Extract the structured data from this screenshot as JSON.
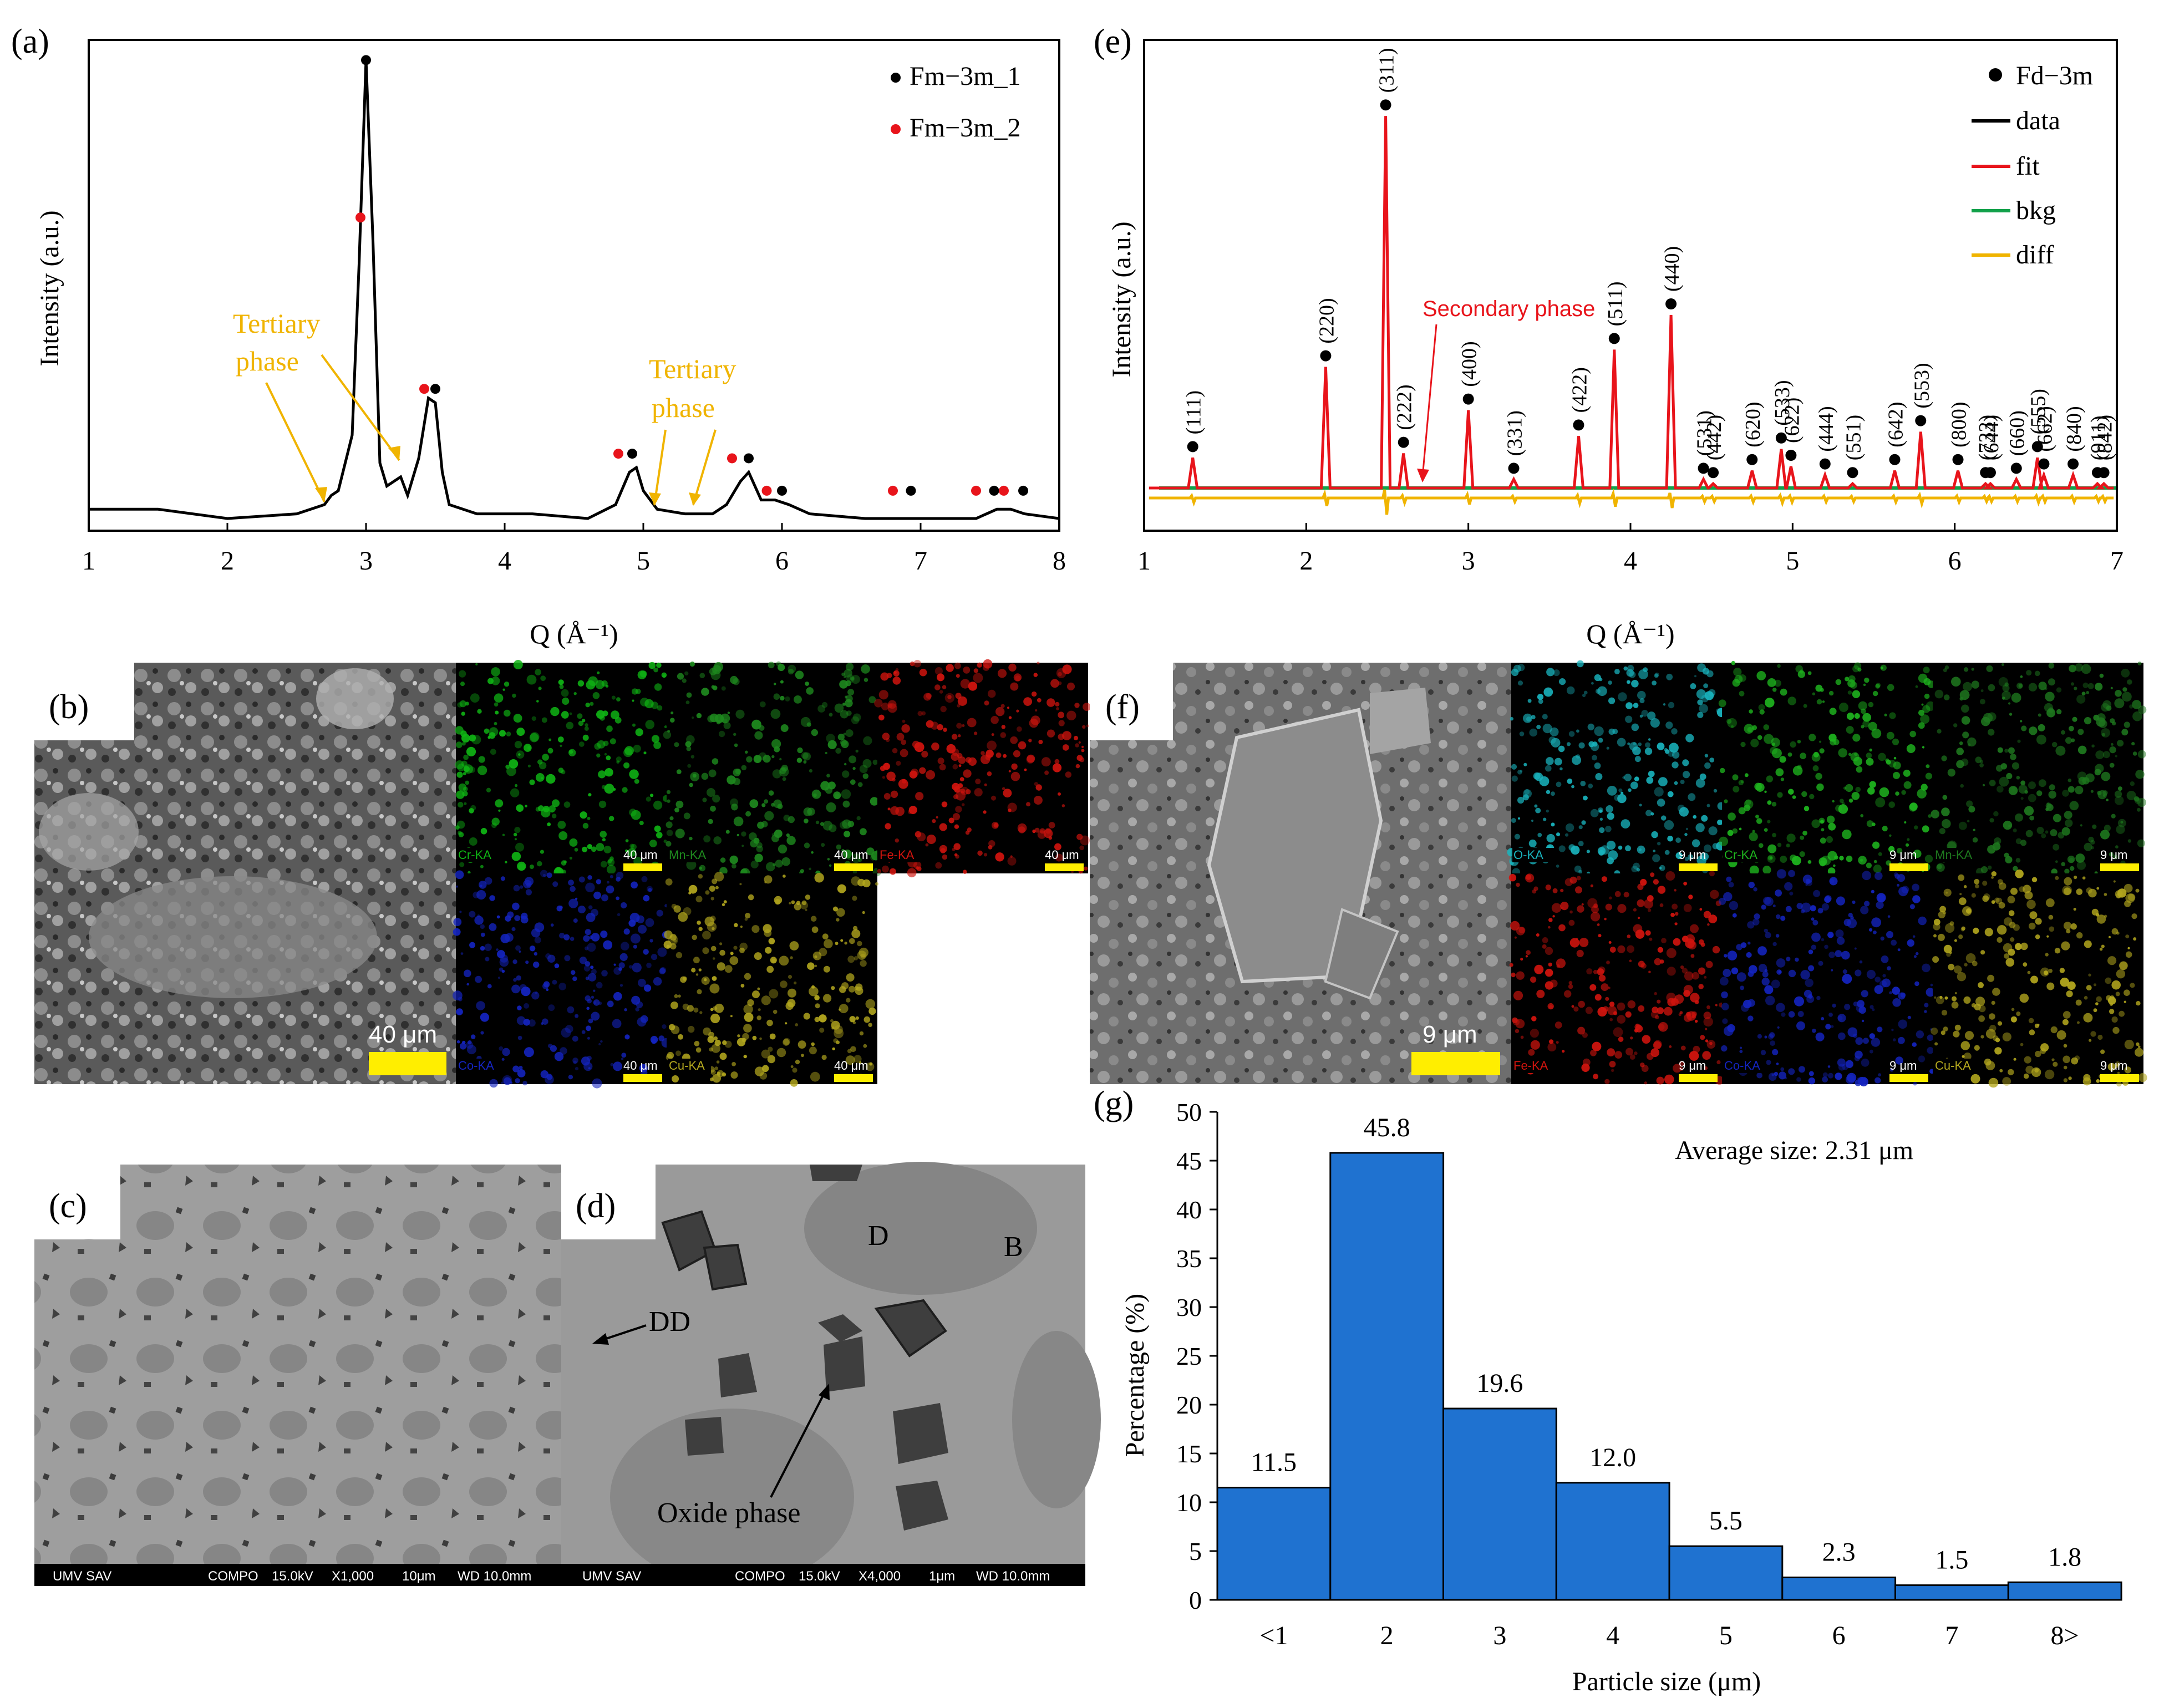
{
  "panels": {
    "a": "(a)",
    "b": "(b)",
    "c": "(c)",
    "d": "(d)",
    "e": "(e)",
    "f": "(f)",
    "g": "(g)"
  },
  "colors": {
    "black": "#000000",
    "red": "#e8141b",
    "green": "#12a14a",
    "orange": "#f0b400",
    "bar": "#1f72d0",
    "tertiary": "#f0b400"
  },
  "chart_data": [
    {
      "id": "a",
      "type": "line",
      "xlabel": "Q (Å⁻¹)",
      "ylabel": "Intensity (a.u.)",
      "xlim": [
        1,
        8
      ],
      "xticks": [
        "1",
        "2",
        "3",
        "4",
        "5",
        "6",
        "7",
        "8"
      ],
      "legend": [
        {
          "name": "Fm−3m_1",
          "color": "#000000"
        },
        {
          "name": "Fm−3m_2",
          "color": "#e8141b"
        }
      ],
      "curve": [
        [
          1.0,
          0.02
        ],
        [
          1.5,
          0.02
        ],
        [
          2.0,
          0.0
        ],
        [
          2.5,
          0.01
        ],
        [
          2.7,
          0.03
        ],
        [
          2.75,
          0.05
        ],
        [
          2.8,
          0.06
        ],
        [
          2.9,
          0.18
        ],
        [
          2.95,
          0.55
        ],
        [
          3.0,
          0.99
        ],
        [
          3.05,
          0.6
        ],
        [
          3.1,
          0.12
        ],
        [
          3.15,
          0.07
        ],
        [
          3.2,
          0.08
        ],
        [
          3.25,
          0.09
        ],
        [
          3.3,
          0.05
        ],
        [
          3.38,
          0.13
        ],
        [
          3.45,
          0.26
        ],
        [
          3.5,
          0.25
        ],
        [
          3.55,
          0.1
        ],
        [
          3.6,
          0.03
        ],
        [
          3.8,
          0.01
        ],
        [
          4.2,
          0.01
        ],
        [
          4.6,
          0.0
        ],
        [
          4.8,
          0.03
        ],
        [
          4.9,
          0.1
        ],
        [
          4.95,
          0.11
        ],
        [
          5.0,
          0.06
        ],
        [
          5.1,
          0.02
        ],
        [
          5.3,
          0.01
        ],
        [
          5.5,
          0.01
        ],
        [
          5.6,
          0.03
        ],
        [
          5.7,
          0.08
        ],
        [
          5.76,
          0.1
        ],
        [
          5.85,
          0.04
        ],
        [
          5.95,
          0.04
        ],
        [
          6.05,
          0.03
        ],
        [
          6.2,
          0.01
        ],
        [
          6.6,
          0.0
        ],
        [
          7.0,
          0.0
        ],
        [
          7.4,
          0.0
        ],
        [
          7.55,
          0.02
        ],
        [
          7.65,
          0.02
        ],
        [
          7.75,
          0.01
        ],
        [
          8.0,
          0.0
        ]
      ],
      "markers_1": [
        [
          3.0,
          0.99
        ],
        [
          3.5,
          0.28
        ],
        [
          4.92,
          0.14
        ],
        [
          5.76,
          0.13
        ],
        [
          6.0,
          0.06
        ],
        [
          6.93,
          0.06
        ],
        [
          7.53,
          0.06
        ],
        [
          7.74,
          0.06
        ]
      ],
      "markers_2": [
        [
          2.96,
          0.65
        ],
        [
          3.42,
          0.28
        ],
        [
          4.82,
          0.14
        ],
        [
          5.64,
          0.13
        ],
        [
          5.89,
          0.06
        ],
        [
          6.8,
          0.06
        ],
        [
          7.4,
          0.06
        ],
        [
          7.6,
          0.06
        ]
      ],
      "annotations": [
        {
          "text": "Tertiary phase",
          "line1": "Tertiary",
          "line2": "phase",
          "x": 2.4,
          "y": 0.42
        },
        {
          "text": "Tertiary phase",
          "line1": "Tertiary",
          "line2": "phase",
          "x": 5.4,
          "y": 0.28
        }
      ]
    },
    {
      "id": "e",
      "type": "line",
      "xlabel": "Q (Å⁻¹)",
      "ylabel": "Intensity (a.u.)",
      "xlim": [
        1,
        7
      ],
      "xticks": [
        "1",
        "2",
        "3",
        "4",
        "5",
        "6",
        "7"
      ],
      "legend": [
        {
          "name": "Fd−3m",
          "marker": true
        },
        {
          "name": "data",
          "color": "#000000"
        },
        {
          "name": "fit",
          "color": "#e8141b"
        },
        {
          "name": "bkg",
          "color": "#12a14a"
        },
        {
          "name": "diff",
          "color": "#f0b400"
        }
      ],
      "annotation": "Secondary phase",
      "peaks": [
        {
          "hkl": "(111)",
          "q": 1.3,
          "h": 0.07
        },
        {
          "hkl": "(220)",
          "q": 2.12,
          "h": 0.28
        },
        {
          "hkl": "(311)",
          "q": 2.49,
          "h": 0.86
        },
        {
          "hkl": "(222)",
          "q": 2.6,
          "h": 0.08
        },
        {
          "hkl": "(400)",
          "q": 3.0,
          "h": 0.18
        },
        {
          "hkl": "(331)",
          "q": 3.28,
          "h": 0.02
        },
        {
          "hkl": "(422)",
          "q": 3.68,
          "h": 0.12
        },
        {
          "hkl": "(511)",
          "q": 3.9,
          "h": 0.32
        },
        {
          "hkl": "(440)",
          "q": 4.25,
          "h": 0.4
        },
        {
          "hkl": "(531)",
          "q": 4.45,
          "h": 0.02
        },
        {
          "hkl": "(442)",
          "q": 4.51,
          "h": 0.01
        },
        {
          "hkl": "(620)",
          "q": 4.75,
          "h": 0.04
        },
        {
          "hkl": "(533)",
          "q": 4.93,
          "h": 0.09
        },
        {
          "hkl": "(622)",
          "q": 4.99,
          "h": 0.05
        },
        {
          "hkl": "(444)",
          "q": 5.2,
          "h": 0.03
        },
        {
          "hkl": "(551)",
          "q": 5.37,
          "h": 0.01
        },
        {
          "hkl": "(642)",
          "q": 5.63,
          "h": 0.04
        },
        {
          "hkl": "(553)",
          "q": 5.79,
          "h": 0.13
        },
        {
          "hkl": "(800)",
          "q": 6.02,
          "h": 0.04
        },
        {
          "hkl": "(733)",
          "q": 6.19,
          "h": 0.01
        },
        {
          "hkl": "(644)",
          "q": 6.22,
          "h": 0.01
        },
        {
          "hkl": "(660)",
          "q": 6.38,
          "h": 0.02
        },
        {
          "hkl": "(555)",
          "q": 6.51,
          "h": 0.07
        },
        {
          "hkl": "(662)",
          "q": 6.55,
          "h": 0.03
        },
        {
          "hkl": "(840)",
          "q": 6.73,
          "h": 0.03
        },
        {
          "hkl": "(911)",
          "q": 6.88,
          "h": 0.01
        },
        {
          "hkl": "(842)",
          "q": 6.92,
          "h": 0.01
        }
      ]
    },
    {
      "id": "g",
      "type": "bar",
      "title": "Average size: 2.31 μm",
      "xlabel": "Particle size (μm)",
      "ylabel": "Percentage (%)",
      "ylim": [
        0,
        50
      ],
      "yticks": [
        "0",
        "5",
        "10",
        "15",
        "20",
        "25",
        "30",
        "35",
        "40",
        "45",
        "50"
      ],
      "categories": [
        "<1",
        "2",
        "3",
        "4",
        "5",
        "6",
        "7",
        "8>"
      ],
      "values": [
        11.5,
        45.8,
        19.6,
        12.0,
        5.5,
        2.3,
        1.5,
        1.8
      ],
      "labels": [
        "11.5",
        "45.8",
        "19.6",
        "12.0",
        "5.5",
        "2.3",
        "1.5",
        "1.8"
      ]
    }
  ],
  "eds_b": [
    {
      "label": "Cr-KA",
      "scale": "40 μm",
      "color": "#0fb414"
    },
    {
      "label": "Mn-KA",
      "scale": "40 μm",
      "color": "#1e8a1e"
    },
    {
      "label": "Fe-KA",
      "scale": "40 μm",
      "color": "#d2140e"
    },
    {
      "label": "Co-KA",
      "scale": "40 μm",
      "color": "#1424c0"
    },
    {
      "label": "Cu-KA",
      "scale": "40 μm",
      "color": "#b4a81e"
    }
  ],
  "sem_b_scale": "40 μm",
  "eds_f": [
    {
      "label": "O-KA",
      "scale": "9 μm",
      "color": "#19b4be"
    },
    {
      "label": "Cr-KA",
      "scale": "9 μm",
      "color": "#1eb41e"
    },
    {
      "label": "Mn-KA",
      "scale": "9 μm",
      "color": "#1e781e"
    },
    {
      "label": "Fe-KA",
      "scale": "9 μm",
      "color": "#d2140e"
    },
    {
      "label": "Co-KA",
      "scale": "9 μm",
      "color": "#1424c0"
    },
    {
      "label": "Cu-KA",
      "scale": "9 μm",
      "color": "#b4a81e"
    }
  ],
  "sem_f_scale": "9 μm",
  "sem_c": {
    "lab": "UMV SAV",
    "mode": "COMPO",
    "kv": "15.0kV",
    "mag": "X1,000",
    "bar": "10μm",
    "wd": "WD 10.0mm"
  },
  "sem_d": {
    "lab": "UMV SAV",
    "mode": "COMPO",
    "kv": "15.0kV",
    "mag": "X4,000",
    "bar": "1μm",
    "wd": "WD 10.0mm",
    "label_D": "D",
    "label_B": "B",
    "label_DD": "DD",
    "label_oxide": "Oxide phase"
  }
}
